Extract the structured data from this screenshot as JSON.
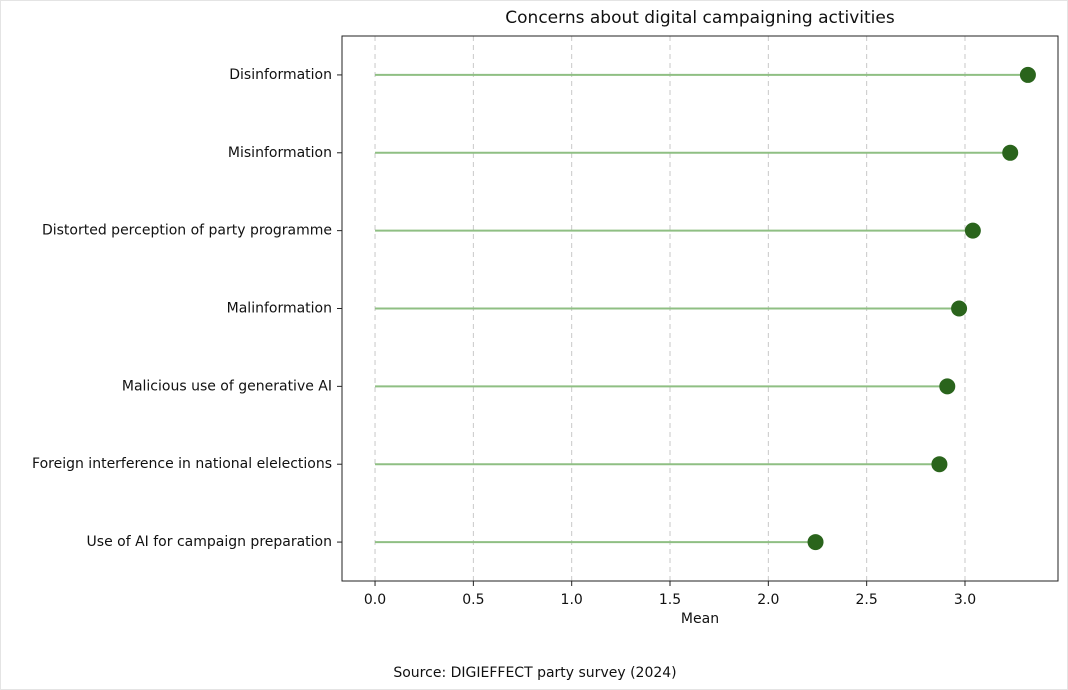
{
  "chart_data": {
    "type": "lollipop",
    "orientation": "horizontal",
    "title": "Concerns about digital campaigning activities",
    "x_label": "Mean",
    "source": "Source: DIGIEFFECT party survey (2024)",
    "categories": [
      "Disinformation",
      "Misinformation",
      "Distorted perception of party programme",
      "Malinformation",
      "Malicious use of generative AI",
      "Foreign interference in national elelections",
      "Use of AI for campaign preparation"
    ],
    "values": [
      3.32,
      3.23,
      3.04,
      2.97,
      2.91,
      2.87,
      2.24
    ],
    "stem_color": "#8fbf83",
    "color": "#2a641c",
    "xlim": [
      -0.168,
      3.473
    ],
    "xticks": [
      {
        "value": 0,
        "label": "0.0"
      },
      0.5,
      {
        "value": 1,
        "label": "1.0"
      },
      1.5,
      {
        "value": 2,
        "label": "2.0"
      },
      2.5,
      {
        "value": 3,
        "label": "3.0"
      }
    ],
    "grid": true
  }
}
